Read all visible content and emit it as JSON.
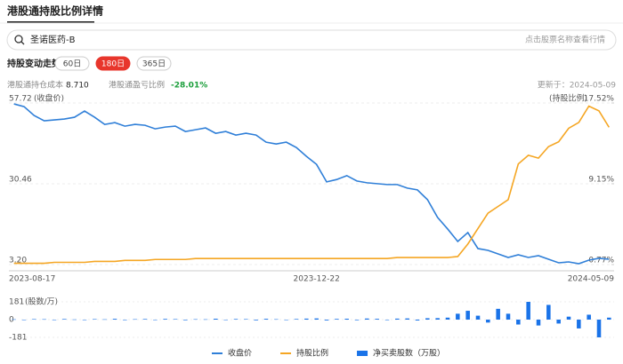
{
  "header": {
    "title": "港股通持股比例详情"
  },
  "search": {
    "value": "圣诺医药-B",
    "hint": "点击股票名称查看行情"
  },
  "section": {
    "title": "持股变动走势",
    "buttons": [
      "60日",
      "180日",
      "365日"
    ],
    "active": 1
  },
  "stats": {
    "cost_label": "港股通持仓成本",
    "cost_value": "8.710",
    "pnl_label": "港股通盈亏比例",
    "pnl_value": "-28.01%",
    "updated": "更新于：2024-05-09"
  },
  "chart_data": [
    {
      "type": "line",
      "categories": [
        "2023-08-17",
        null,
        null,
        null,
        null,
        null,
        null,
        null,
        null,
        null,
        null,
        null,
        null,
        null,
        null,
        null,
        null,
        null,
        null,
        null,
        null,
        null,
        null,
        null,
        null,
        null,
        null,
        null,
        null,
        null,
        "2023-12-22",
        null,
        null,
        null,
        null,
        null,
        null,
        null,
        null,
        null,
        null,
        null,
        null,
        null,
        null,
        null,
        null,
        null,
        null,
        null,
        null,
        null,
        null,
        null,
        null,
        null,
        null,
        null,
        null,
        "2024-05-09"
      ],
      "y_label": "(收盘价)",
      "y2_label": "(持股比例)",
      "ylim": [
        3.2,
        57.72
      ],
      "yticks": [
        {
          "value": 3.2,
          "label": "3.20"
        },
        30.46,
        57.72
      ],
      "y2lim": [
        0.77,
        17.52
      ],
      "y2ticks": [
        {
          "value": 0.77,
          "label": "0.77%"
        },
        {
          "value": 9.15,
          "label": "9.15%"
        },
        {
          "value": 17.52,
          "label": "17.52%"
        }
      ],
      "grid": true,
      "series": [
        {
          "name": "收盘价",
          "color": "#2f7fd8",
          "values": [
            57.4,
            56.5,
            53.5,
            51.7,
            52.0,
            52.3,
            52.9,
            55.0,
            52.9,
            50.5,
            51.1,
            49.9,
            50.5,
            50.2,
            49.0,
            49.6,
            49.9,
            48.1,
            48.7,
            49.3,
            47.5,
            48.1,
            46.9,
            47.5,
            46.9,
            44.5,
            43.9,
            44.5,
            42.7,
            39.7,
            37.0,
            31.1,
            31.9,
            33.2,
            31.4,
            30.8,
            30.5,
            30.2,
            30.2,
            29.0,
            28.4,
            25.1,
            19.1,
            15.2,
            11.0,
            14.0,
            8.6,
            8.0,
            6.8,
            5.6,
            6.5,
            5.6,
            6.2,
            5.0,
            3.8,
            4.1,
            3.5,
            4.7,
            5.3,
            5.0
          ]
        },
        {
          "name": "持股比例",
          "color": "#f5a623",
          "axis": "y2",
          "values": [
            0.9,
            0.9,
            0.9,
            0.9,
            1.0,
            1.0,
            1.0,
            1.0,
            1.1,
            1.1,
            1.1,
            1.2,
            1.2,
            1.2,
            1.3,
            1.3,
            1.3,
            1.3,
            1.4,
            1.4,
            1.4,
            1.4,
            1.4,
            1.4,
            1.4,
            1.4,
            1.4,
            1.4,
            1.4,
            1.4,
            1.4,
            1.4,
            1.4,
            1.4,
            1.4,
            1.4,
            1.4,
            1.4,
            1.5,
            1.5,
            1.5,
            1.5,
            1.5,
            1.5,
            1.6,
            2.9,
            4.5,
            6.1,
            6.8,
            7.5,
            11.2,
            12.1,
            11.8,
            13.0,
            13.5,
            14.9,
            15.5,
            17.2,
            16.7,
            15.0
          ]
        }
      ]
    },
    {
      "type": "bar",
      "y_label": "(股数/万)",
      "ylim": [
        -181,
        181
      ],
      "yticks": [
        -181,
        0,
        181
      ],
      "series": [
        {
          "name": "净买卖股数（万股）",
          "color": "#1a73e8",
          "values": [
            3,
            -2,
            5,
            4,
            -3,
            6,
            2,
            -4,
            5,
            3,
            8,
            -5,
            4,
            6,
            -3,
            7,
            5,
            -6,
            4,
            3,
            9,
            -4,
            6,
            5,
            -7,
            8,
            4,
            -3,
            6,
            10,
            12,
            -8,
            7,
            9,
            -6,
            11,
            8,
            -5,
            10,
            12,
            -9,
            14,
            15,
            20,
            60,
            90,
            40,
            -30,
            110,
            60,
            -50,
            181,
            -60,
            150,
            -40,
            30,
            -90,
            50,
            -181,
            20
          ]
        }
      ]
    }
  ]
}
